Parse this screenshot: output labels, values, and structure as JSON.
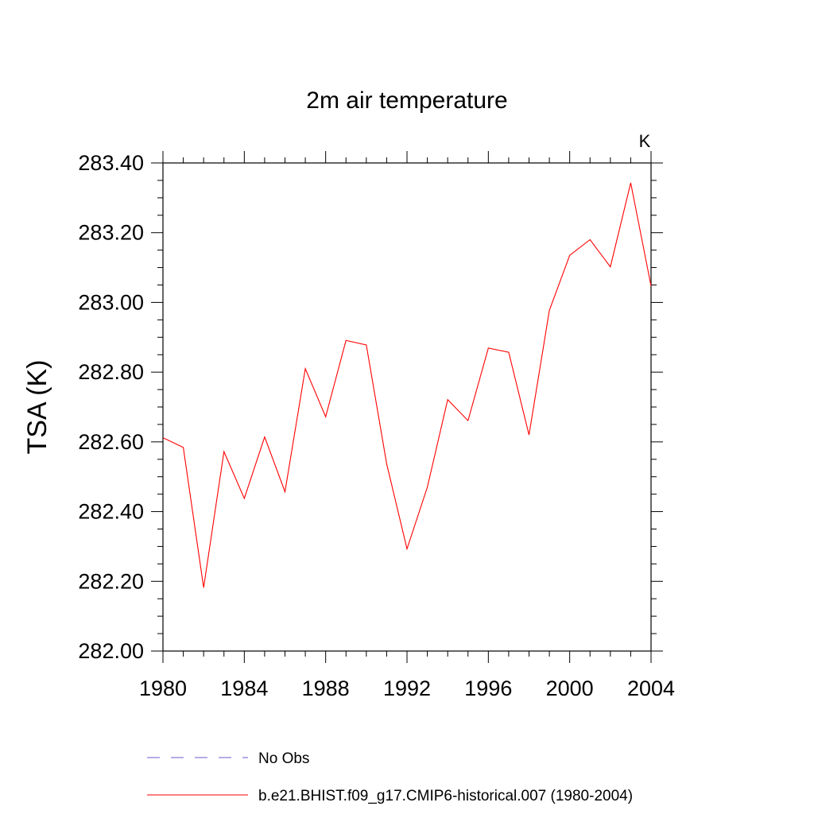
{
  "chart_data": {
    "type": "line",
    "title": "2m air temperature",
    "ylabel": "TSA  (K)",
    "units_label": "K",
    "xlim": [
      1980,
      2004
    ],
    "ylim": [
      282.0,
      283.4
    ],
    "x_ticks": [
      "1980",
      "1984",
      "1988",
      "1992",
      "1996",
      "2000",
      "2004"
    ],
    "y_ticks": [
      "282.00",
      "282.20",
      "282.40",
      "282.60",
      "282.80",
      "283.00",
      "283.20",
      "283.40"
    ],
    "x": [
      1980,
      1981,
      1982,
      1983,
      1984,
      1985,
      1986,
      1987,
      1988,
      1989,
      1990,
      1991,
      1992,
      1993,
      1994,
      1995,
      1996,
      1997,
      1998,
      1999,
      2000,
      2001,
      2002,
      2003,
      2004
    ],
    "series": [
      {
        "name": "b.e21.BHIST.f09_g17.CMIP6-historical.007 (1980-2004)",
        "color": "#ff0000",
        "values": [
          282.612,
          282.584,
          282.182,
          282.572,
          282.438,
          282.614,
          282.457,
          282.81,
          282.672,
          282.891,
          282.878,
          282.537,
          282.293,
          282.47,
          282.721,
          282.661,
          282.869,
          282.857,
          282.62,
          282.977,
          283.135,
          283.18,
          283.102,
          283.343,
          283.047
        ]
      }
    ],
    "legend": [
      {
        "label": "No Obs",
        "style": "dashed",
        "color": "#6a5acd"
      },
      {
        "label": "b.e21.BHIST.f09_g17.CMIP6-historical.007 (1980-2004)",
        "style": "solid",
        "color": "#ff0000"
      }
    ],
    "legend_position": "bottom",
    "grid": false
  }
}
